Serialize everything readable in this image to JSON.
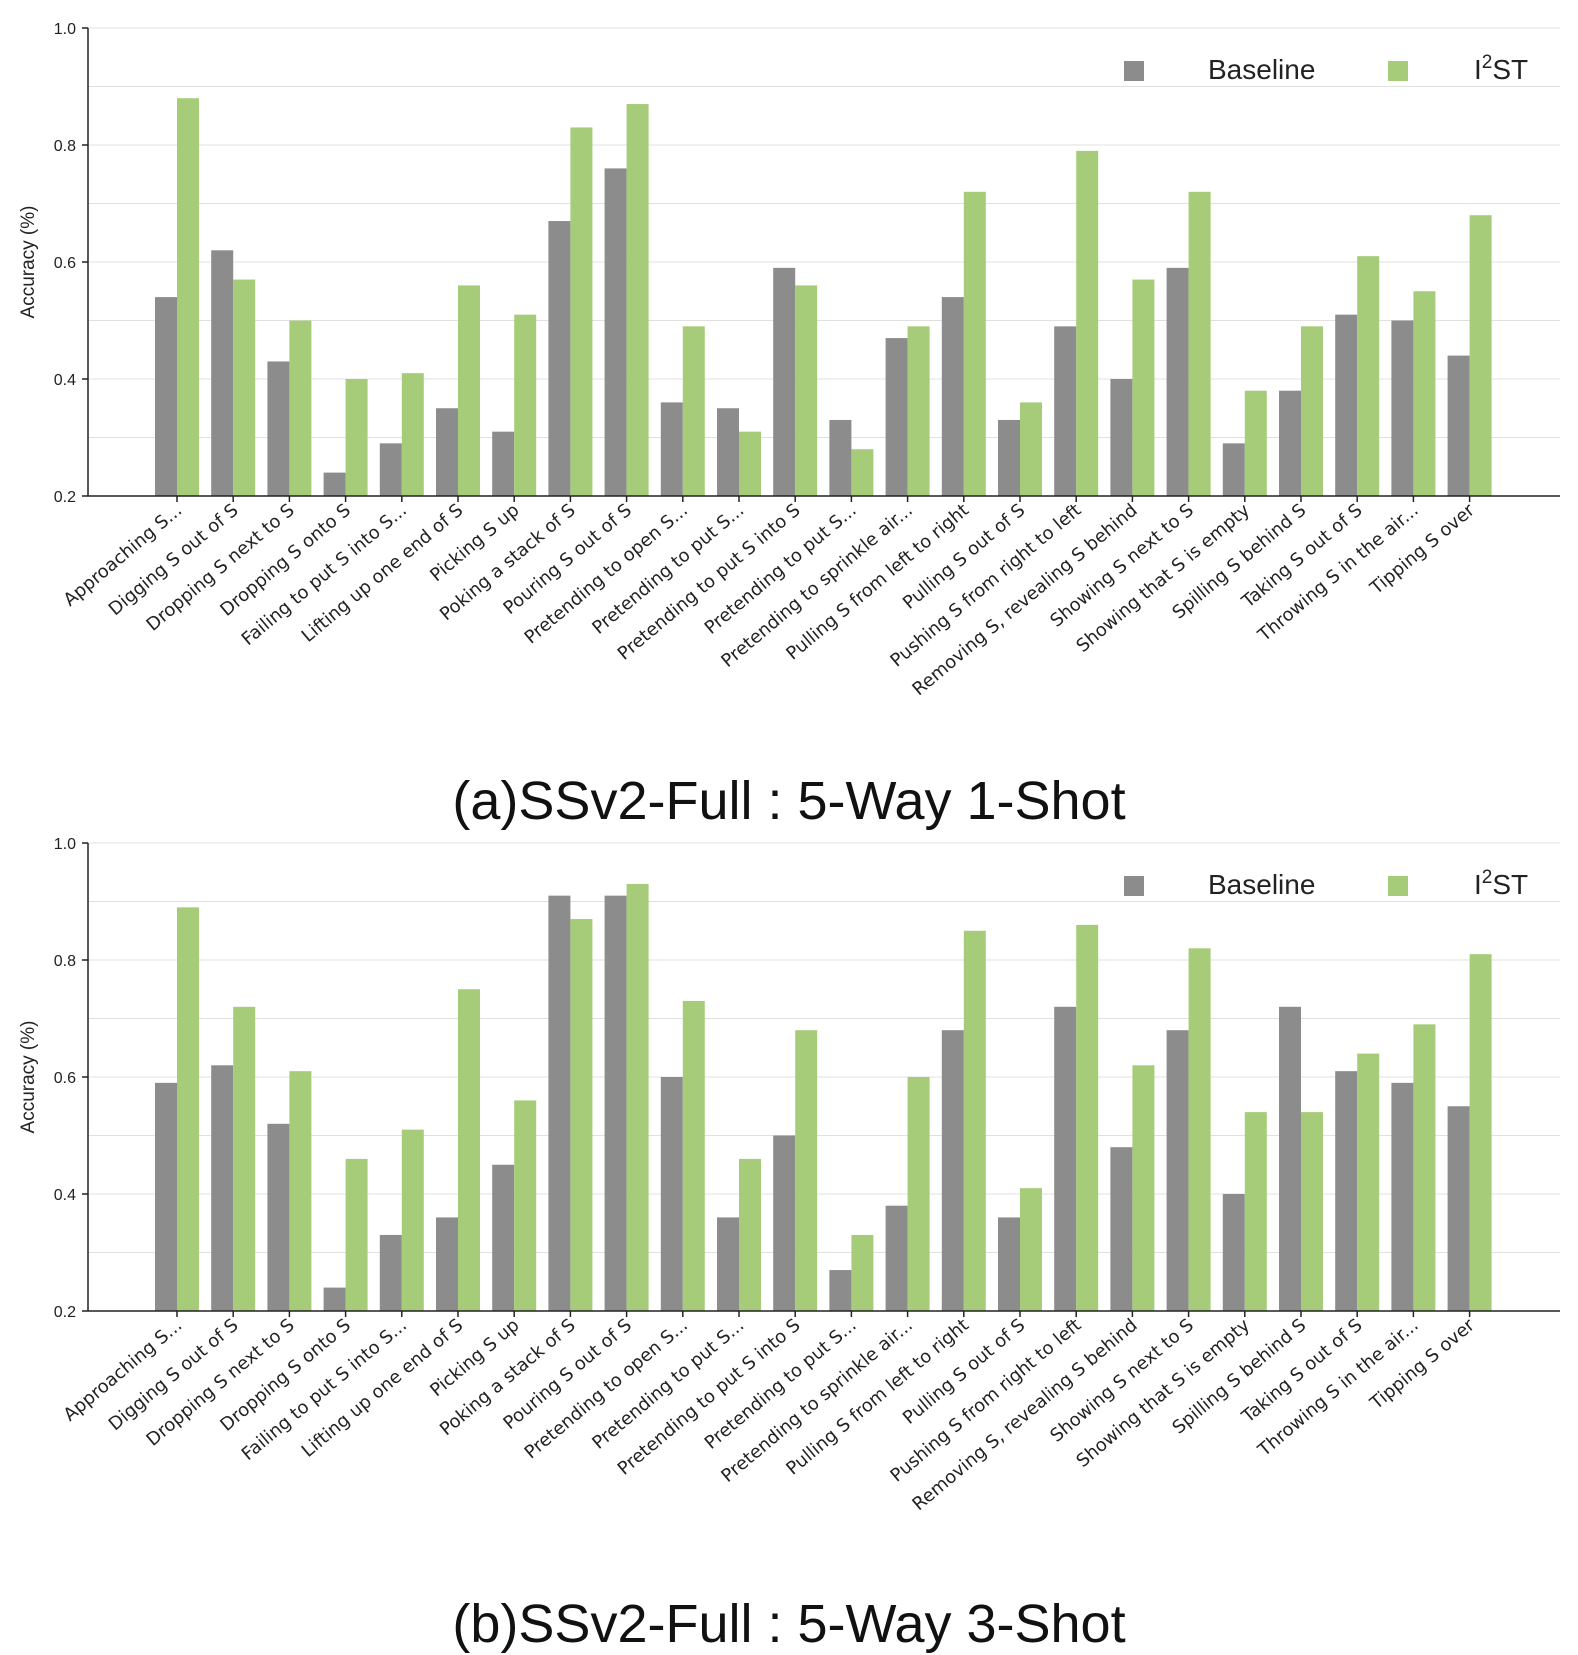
{
  "colors": {
    "baseline": "#8c8c8c",
    "i2st": "#a6cc7a",
    "axis": "#222222",
    "grid": "#e0e0e0"
  },
  "chart_data": [
    {
      "type": "bar",
      "caption": "(a)SSv2-Full : 5-Way 1-Shot",
      "ylabel": "Accuracy (%)",
      "ylim": [
        0.2,
        1.0
      ],
      "yticks": [
        "0.2",
        "0.4",
        "0.6",
        "0.8",
        "1.0"
      ],
      "grid": true,
      "legend_position": "top-right",
      "legend": {
        "baseline": "Baseline",
        "i2st_base": "I",
        "i2st_sup": "2",
        "i2st_rest": "ST"
      },
      "categories": [
        "Approaching S...",
        "Digging S out of S",
        "Dropping S next to S",
        "Dropping S onto S",
        "Failing to put S into S...",
        "Lifting up one end of S",
        "Picking S up",
        "Poking a stack of S",
        "Pouring S out of S",
        "Pretending to open S...",
        "Pretending to put S...",
        "Pretending to put S into S",
        "Pretending to put S...",
        "Pretending to sprinkle air...",
        "Pulling S from left to right",
        "Pulling S out of S",
        "Pushing S from right to left",
        "Removing S, revealing S behind",
        "Showing S next to S",
        "Showing that S is empty",
        "Spilling S behind S",
        "Taking S out of S",
        "Throwing S in the air...",
        "Tipping S over"
      ],
      "series": [
        {
          "name": "Baseline",
          "values": [
            0.54,
            0.62,
            0.43,
            0.24,
            0.29,
            0.35,
            0.31,
            0.67,
            0.76,
            0.36,
            0.35,
            0.59,
            0.33,
            0.47,
            0.54,
            0.33,
            0.49,
            0.4,
            0.59,
            0.29,
            0.38,
            0.51,
            0.5,
            0.44
          ]
        },
        {
          "name": "I2ST",
          "values": [
            0.88,
            0.57,
            0.5,
            0.4,
            0.41,
            0.56,
            0.51,
            0.83,
            0.87,
            0.49,
            0.31,
            0.56,
            0.28,
            0.49,
            0.72,
            0.36,
            0.79,
            0.57,
            0.72,
            0.38,
            0.49,
            0.61,
            0.55,
            0.68
          ]
        }
      ]
    },
    {
      "type": "bar",
      "caption": "(b)SSv2-Full : 5-Way 3-Shot",
      "ylabel": "Accuracy (%)",
      "ylim": [
        0.2,
        1.0
      ],
      "yticks": [
        "0.2",
        "0.4",
        "0.6",
        "0.8",
        "1.0"
      ],
      "grid": true,
      "legend_position": "top-right",
      "legend": {
        "baseline": "Baseline",
        "i2st_base": "I",
        "i2st_sup": "2",
        "i2st_rest": "ST"
      },
      "categories": [
        "Approaching S...",
        "Digging S out of S",
        "Dropping S next to S",
        "Dropping S onto S",
        "Failing to put S into S...",
        "Lifting up one end of S",
        "Picking S up",
        "Poking a stack of S",
        "Pouring S out of S",
        "Pretending to open S...",
        "Pretending to put S...",
        "Pretending to put S into S",
        "Pretending to put S...",
        "Pretending to sprinkle air...",
        "Pulling S from left to right",
        "Pulling S out of S",
        "Pushing S from right to left",
        "Removing S, revealing S behind",
        "Showing S next to S",
        "Showing that S is empty",
        "Spilling S behind S",
        "Taking S out of S",
        "Throwing S in the air...",
        "Tipping S over"
      ],
      "series": [
        {
          "name": "Baseline",
          "values": [
            0.59,
            0.62,
            0.52,
            0.24,
            0.33,
            0.36,
            0.45,
            0.91,
            0.91,
            0.6,
            0.36,
            0.5,
            0.27,
            0.38,
            0.68,
            0.36,
            0.72,
            0.48,
            0.68,
            0.4,
            0.72,
            0.61,
            0.59,
            0.55
          ]
        },
        {
          "name": "I2ST",
          "values": [
            0.89,
            0.72,
            0.61,
            0.46,
            0.51,
            0.75,
            0.56,
            0.87,
            0.93,
            0.73,
            0.46,
            0.68,
            0.33,
            0.6,
            0.85,
            0.41,
            0.86,
            0.62,
            0.82,
            0.54,
            0.54,
            0.64,
            0.69,
            0.81
          ]
        }
      ]
    }
  ]
}
